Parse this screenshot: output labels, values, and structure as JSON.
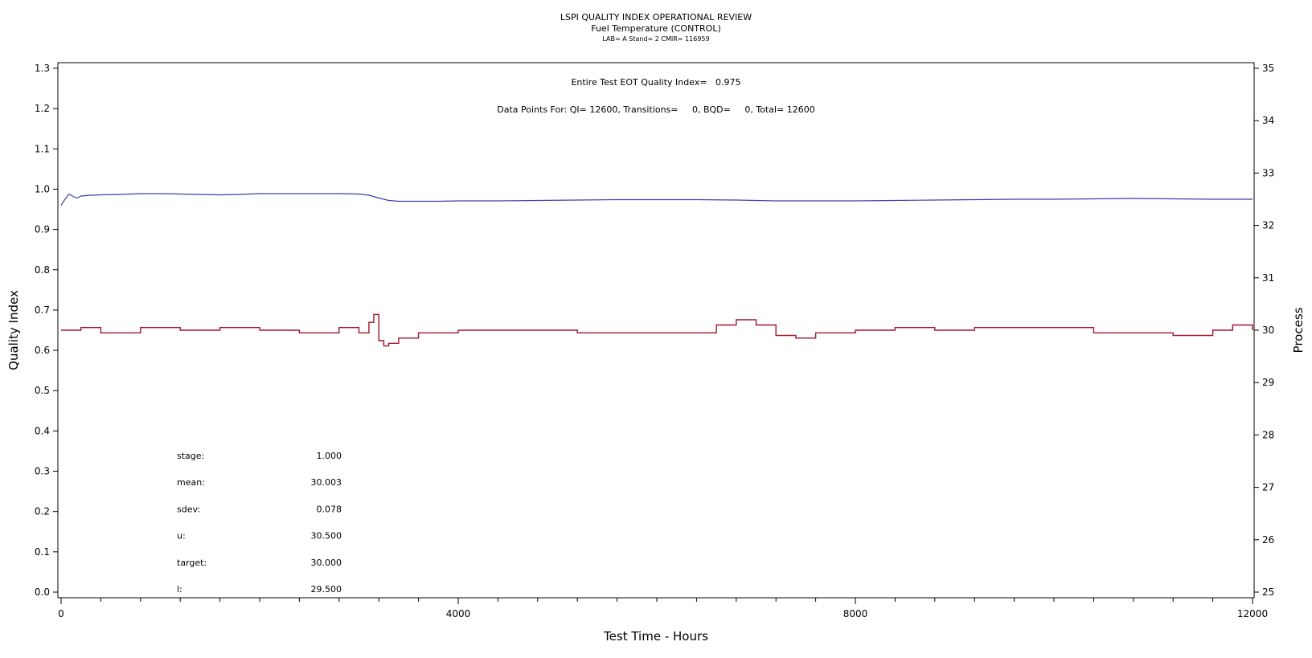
{
  "chart_data": {
    "type": "line",
    "title": "LSPI QUALITY INDEX OPERATIONAL REVIEW",
    "subtitle": "Fuel Temperature (CONTROL)",
    "subtitle2": "LAB= A Stand= 2 CMIR= 116959",
    "xlabel": "Test Time - Hours",
    "ylabel_left": "Quality Index",
    "ylabel_right": "Process",
    "xlim": [
      0,
      12000
    ],
    "ylim_left": [
      0,
      1.3
    ],
    "ylim_right": [
      25,
      35
    ],
    "x_ticks": [
      "0",
      "4000",
      "8000",
      "12000"
    ],
    "y_left_ticks": [
      "0.0",
      "0.1",
      "0.2",
      "0.3",
      "0.4",
      "0.5",
      "0.6",
      "0.7",
      "0.8",
      "0.9",
      "1.0",
      "1.1",
      "1.2",
      "1.3"
    ],
    "y_right_ticks": [
      "25",
      "26",
      "27",
      "28",
      "29",
      "30",
      "31",
      "32",
      "33",
      "34",
      "35"
    ],
    "annotations": {
      "qi_text": "Entire Test EOT Quality Index=   0.975",
      "points_text": "Data Points For: QI= 12600, Transitions=     0, BQD=     0, Total= 12600"
    },
    "stats": [
      {
        "label": "stage:",
        "value": "1.000"
      },
      {
        "label": "mean:",
        "value": "30.003"
      },
      {
        "label": "sdev:",
        "value": "0.078"
      },
      {
        "label": "u:",
        "value": "30.500"
      },
      {
        "label": "target:",
        "value": "30.000"
      },
      {
        "label": "l:",
        "value": "29.500"
      }
    ],
    "series": [
      {
        "axis": "left",
        "color": "#3b3fb0",
        "x": [
          0,
          40,
          80,
          120,
          160,
          200,
          300,
          400,
          600,
          800,
          1000,
          1200,
          1400,
          1600,
          1800,
          2000,
          2200,
          2400,
          2600,
          2800,
          3000,
          3100,
          3200,
          3300,
          3400,
          3600,
          3800,
          4000,
          4400,
          4800,
          5200,
          5600,
          6000,
          6400,
          6800,
          7200,
          7600,
          8000,
          8400,
          8800,
          9200,
          9600,
          10000,
          10400,
          10800,
          11200,
          11600,
          12000
        ],
        "values": [
          0.96,
          0.975,
          0.988,
          0.982,
          0.978,
          0.983,
          0.985,
          0.986,
          0.987,
          0.989,
          0.989,
          0.988,
          0.987,
          0.986,
          0.987,
          0.989,
          0.989,
          0.989,
          0.989,
          0.989,
          0.988,
          0.985,
          0.978,
          0.972,
          0.97,
          0.97,
          0.97,
          0.971,
          0.971,
          0.972,
          0.973,
          0.974,
          0.974,
          0.974,
          0.973,
          0.971,
          0.971,
          0.971,
          0.972,
          0.973,
          0.974,
          0.975,
          0.975,
          0.976,
          0.977,
          0.976,
          0.975,
          0.975
        ]
      },
      {
        "axis": "right",
        "color": "#a3152a",
        "x": [
          0,
          200,
          400,
          800,
          1200,
          1600,
          2000,
          2400,
          2800,
          3000,
          3100,
          3150,
          3200,
          3250,
          3300,
          3400,
          3600,
          4000,
          4400,
          4800,
          5200,
          5600,
          6000,
          6400,
          6600,
          6800,
          7000,
          7200,
          7400,
          7600,
          8000,
          8400,
          8800,
          9200,
          9600,
          10000,
          10400,
          10800,
          11200,
          11600,
          11800,
          12000
        ],
        "values": [
          30.0,
          30.05,
          29.95,
          30.05,
          30.0,
          30.05,
          30.0,
          29.95,
          30.05,
          29.95,
          30.15,
          30.3,
          29.8,
          29.7,
          29.75,
          29.85,
          29.95,
          30.0,
          30.0,
          30.0,
          29.95,
          29.95,
          29.95,
          29.95,
          30.1,
          30.2,
          30.1,
          29.9,
          29.85,
          29.95,
          30.0,
          30.05,
          30.0,
          30.05,
          30.05,
          30.05,
          29.95,
          29.95,
          29.9,
          30.0,
          30.1,
          30.0
        ]
      }
    ]
  }
}
